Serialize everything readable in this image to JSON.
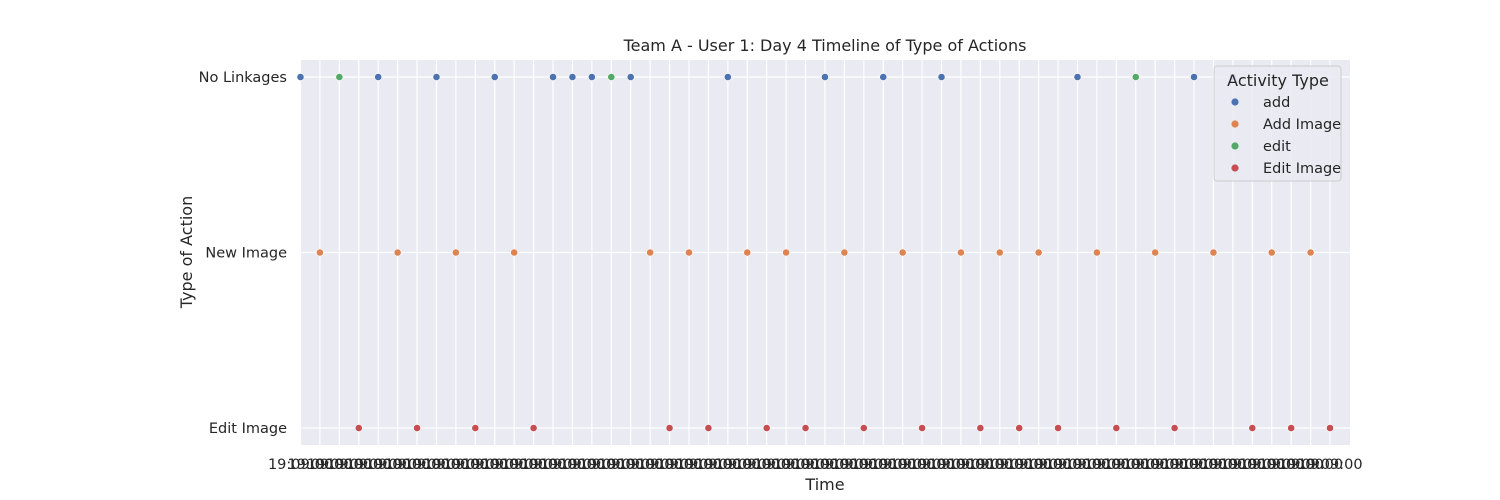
{
  "chart_data": {
    "type": "scatter",
    "title": "Team A - User 1: Day 4 Timeline of Type of Actions",
    "xlabel": "Time",
    "ylabel": "Type of Action",
    "y_categories": [
      "No Linkages",
      "New Image",
      "Edit Image"
    ],
    "x_tick_labels": [
      "19:09:00",
      "19:09:00",
      "19:09:00",
      "19:09:00",
      "19:09:00",
      "19:09:00",
      "19:09:00",
      "19:09:00",
      "19:09:00",
      "19:09:00",
      "19:09:00",
      "19:09:00",
      "19:09:00",
      "19:09:00",
      "19:09:00",
      "19:09:00",
      "19:09:00",
      "19:09:00",
      "19:09:00",
      "19:09:00",
      "19:09:00",
      "19:09:00",
      "19:09:00",
      "19:09:00",
      "19:09:00",
      "19:09:00",
      "19:09:00",
      "19:09:00",
      "19:09:00",
      "19:09:00",
      "19:09:00",
      "19:09:00",
      "19:09:00",
      "19:09:00",
      "19:09:00",
      "19:09:00",
      "19:09:00",
      "19:09:00",
      "19:09:00",
      "19:09:00",
      "19:09:00",
      "19:09:00",
      "19:09:00",
      "19:09:00",
      "19:09:00",
      "19:09:00",
      "19:09:00",
      "19:09:00",
      "19:09:00",
      "19:09:00",
      "19:09:00",
      "19:09:00",
      "19:09:00",
      "19:09:00"
    ],
    "grid": true,
    "legend": {
      "title": "Activity Type",
      "placement": "top-right"
    },
    "series": [
      {
        "name": "add",
        "color": "#4c72b0",
        "y": "No Linkages",
        "x": [
          0,
          4,
          7,
          10,
          13,
          14,
          15,
          17,
          22,
          27,
          30,
          33,
          40,
          46,
          48
        ]
      },
      {
        "name": "Add Image",
        "color": "#dd8452",
        "y": "New Image",
        "x": [
          1,
          5,
          8,
          11,
          18,
          20,
          23,
          25,
          28,
          31,
          34,
          36,
          38,
          41,
          44,
          47,
          50,
          52
        ]
      },
      {
        "name": "edit",
        "color": "#55a868",
        "y": "No Linkages",
        "x": [
          2,
          16,
          43
        ]
      },
      {
        "name": "Edit Image",
        "color": "#c44e52",
        "y": "Edit Image",
        "x": [
          3,
          6,
          9,
          12,
          19,
          21,
          24,
          26,
          29,
          32,
          35,
          37,
          39,
          42,
          45,
          49,
          51,
          53
        ]
      }
    ]
  }
}
